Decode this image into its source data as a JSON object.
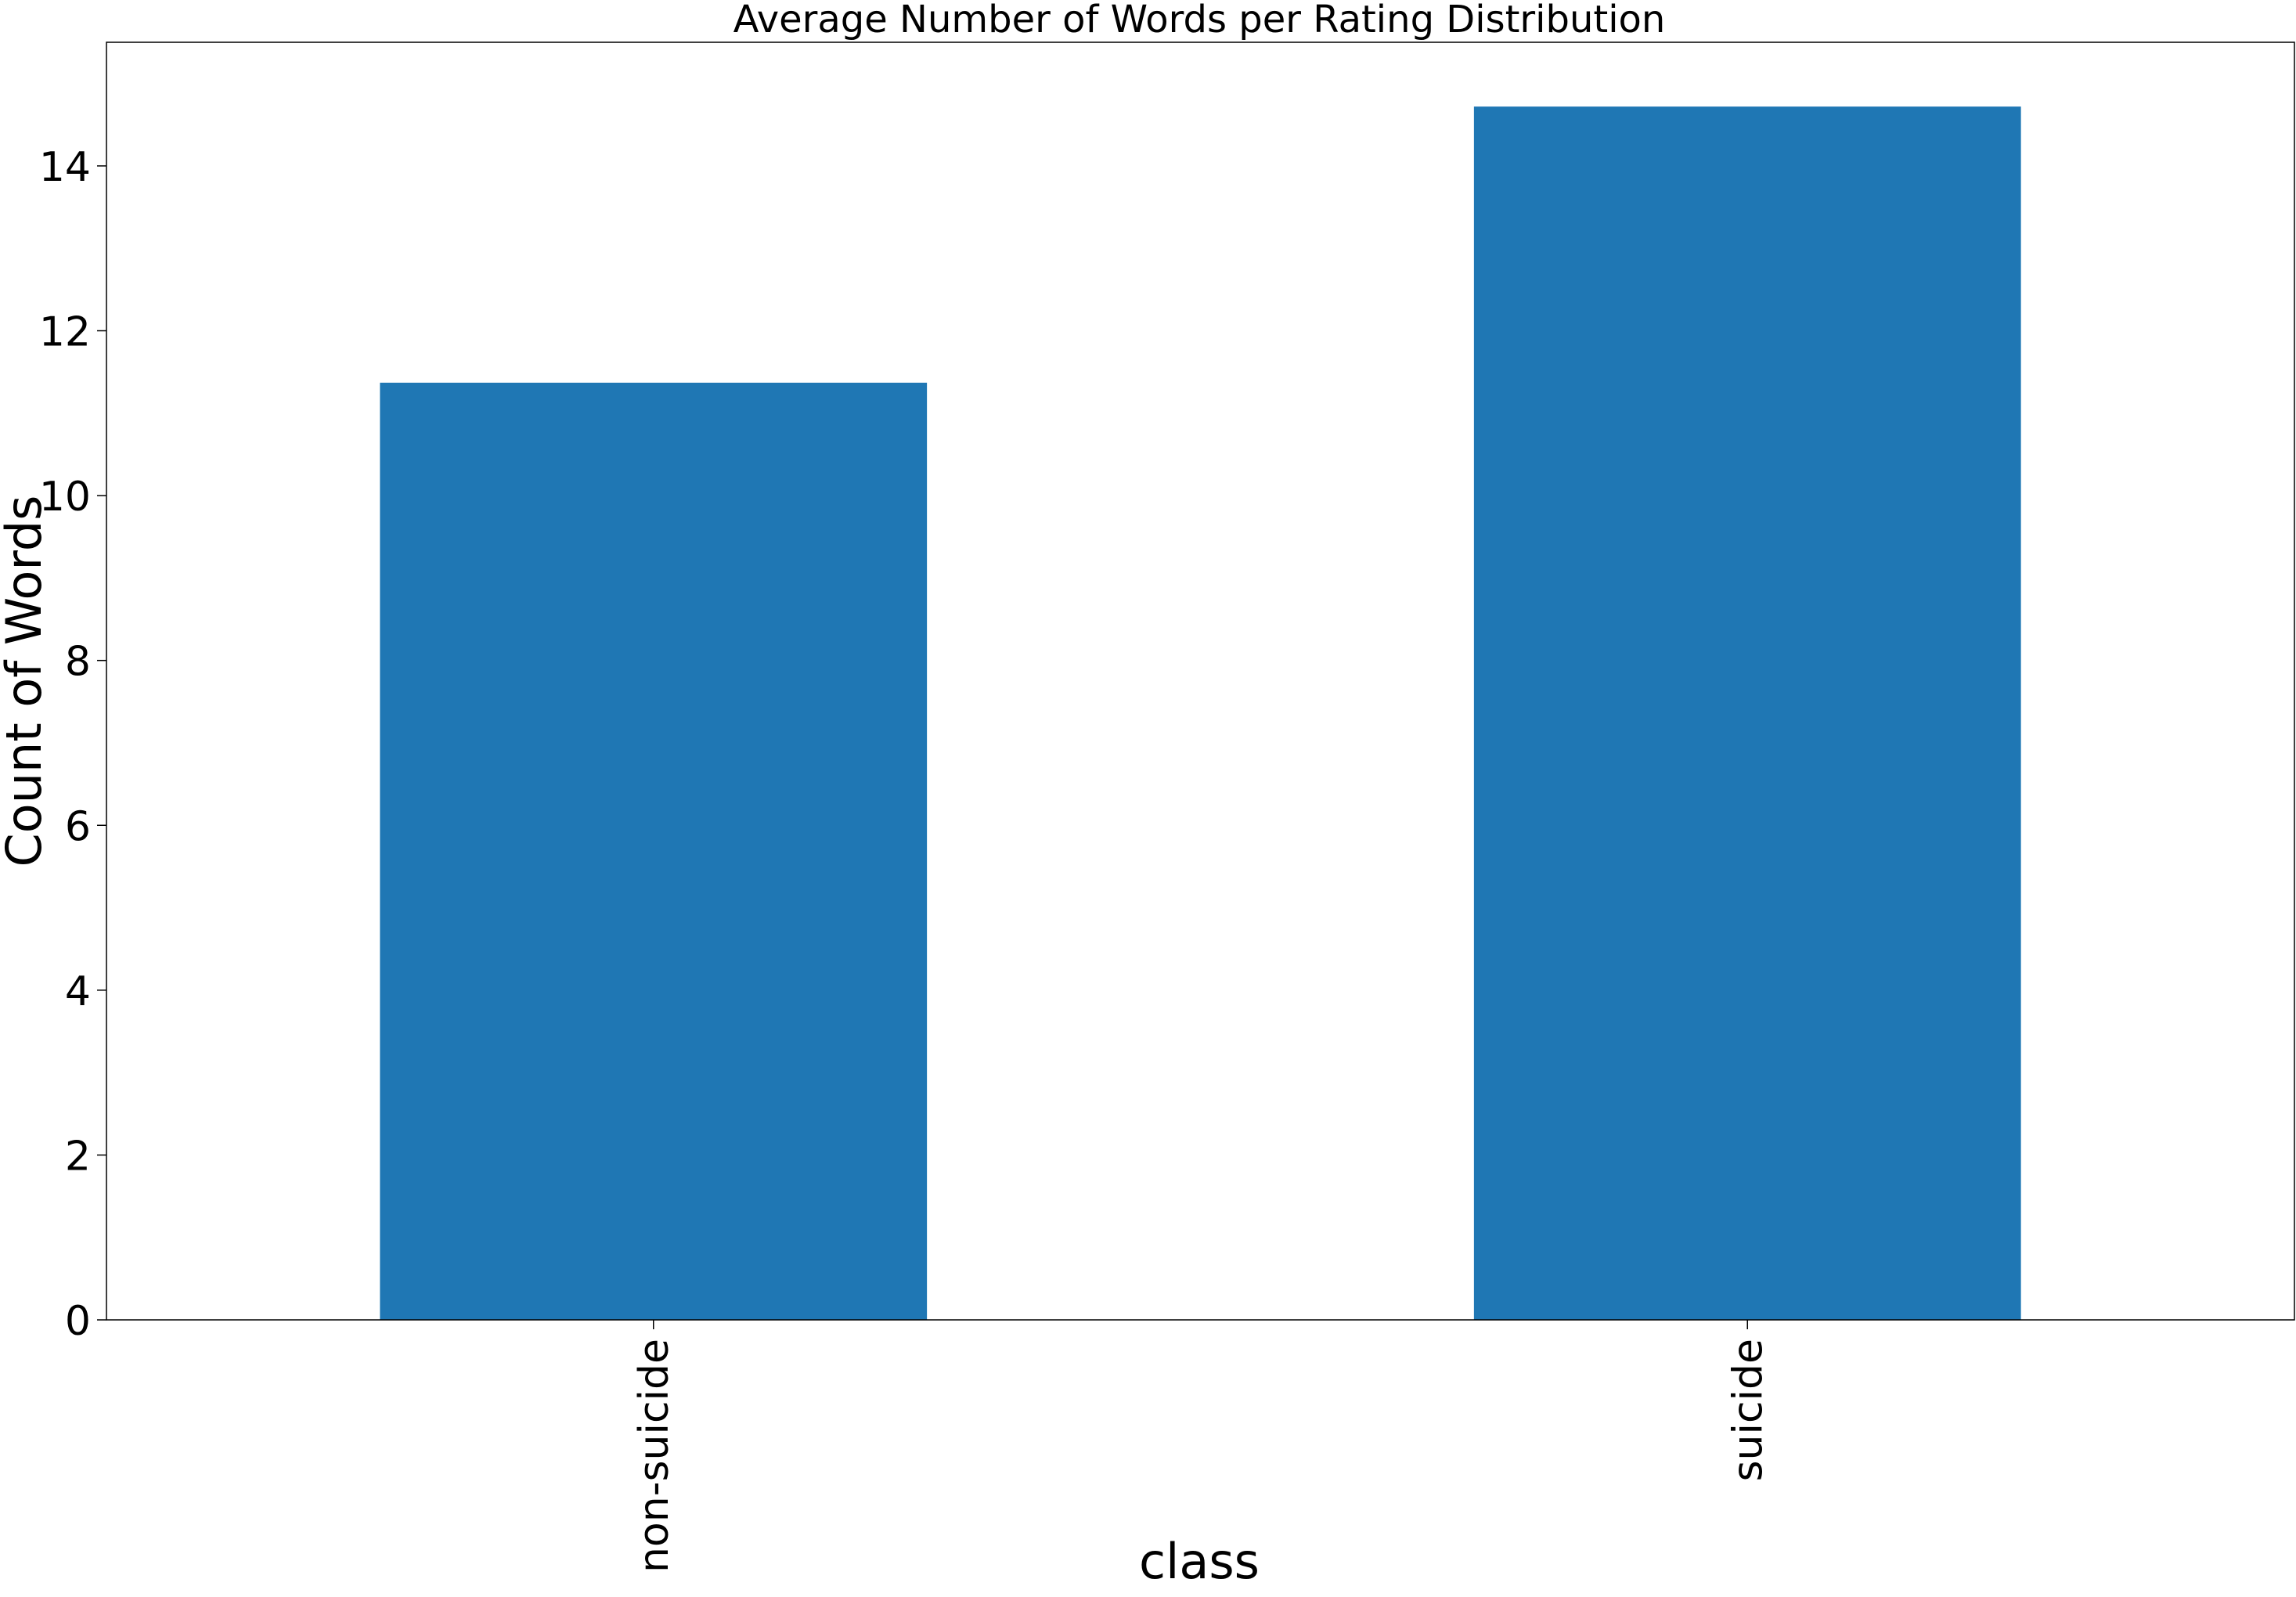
{
  "chart_data": {
    "type": "bar",
    "title": "Average Number of Words per Rating Distribution",
    "xlabel": "class",
    "ylabel": "Count of Words",
    "categories": [
      "non-suicide",
      "suicide"
    ],
    "values": [
      11.37,
      14.72
    ],
    "ylim": [
      0,
      15.5
    ],
    "yticks": [
      0,
      2,
      4,
      6,
      8,
      10,
      12,
      14
    ],
    "grid": false,
    "bar_color": "#1f77b4"
  }
}
